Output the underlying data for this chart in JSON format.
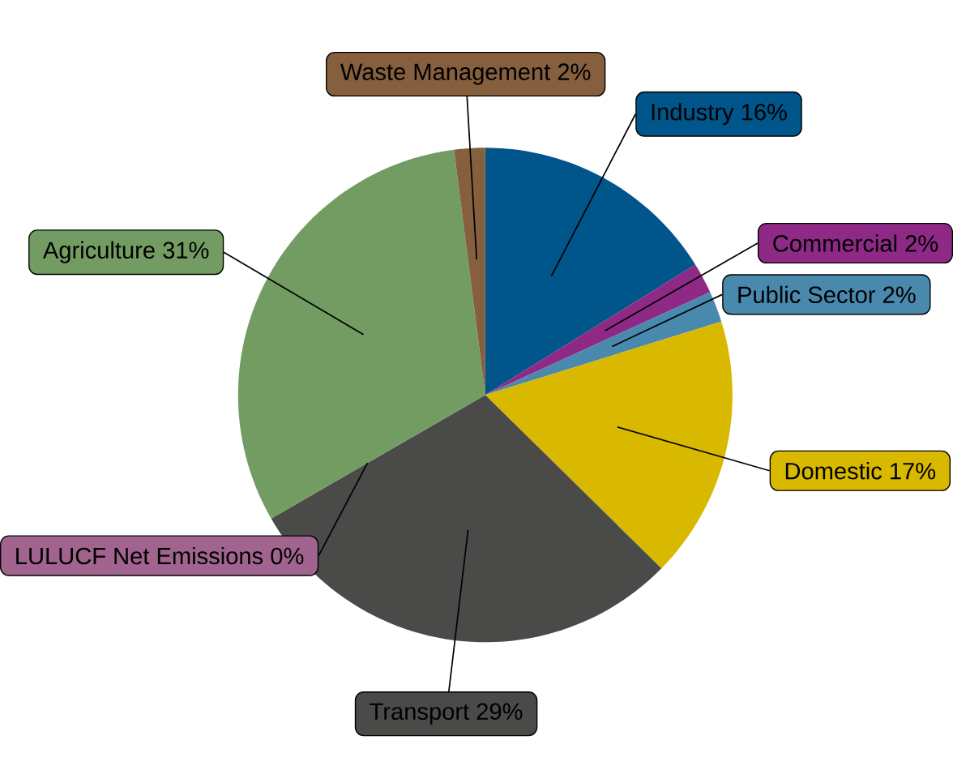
{
  "chart_data": {
    "type": "pie",
    "categories": [
      "Industry",
      "Commercial",
      "Public Sector",
      "Domestic",
      "Transport",
      "LULUCF Net Emissions",
      "Agriculture",
      "Waste Management"
    ],
    "values": [
      16,
      2,
      2,
      17,
      29,
      0,
      31,
      2
    ],
    "value_labels": [
      "16%",
      "2%",
      "2%",
      "17%",
      "29%",
      "0%",
      "31%",
      "2%"
    ],
    "colors": [
      "#00558a",
      "#8e2a85",
      "#4a89ae",
      "#d9b800",
      "#4a4a49",
      "#a0648f",
      "#739c63",
      "#855f3e"
    ]
  }
}
